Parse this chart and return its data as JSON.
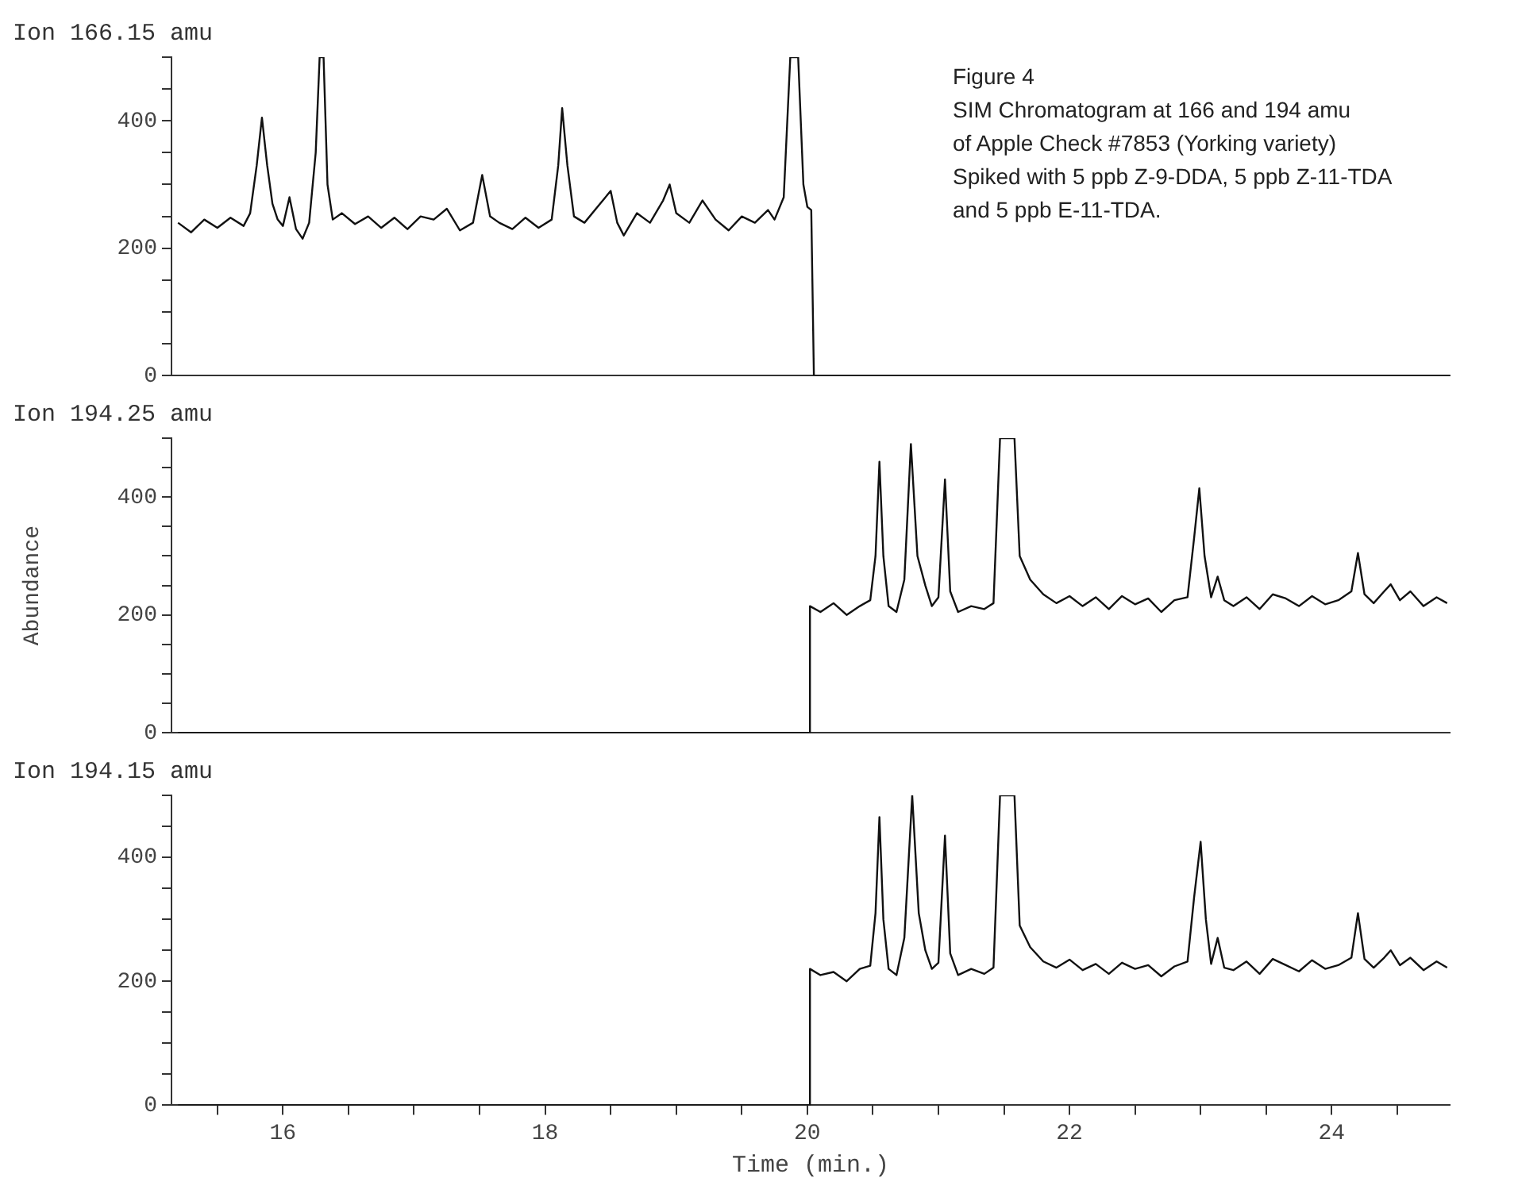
{
  "chart_data": [
    {
      "type": "line",
      "title": "Ion 166.15 amu",
      "color": "#111111",
      "marker": "none",
      "line_style": "solid",
      "tick_labels": "y",
      "xlim": [
        15.15,
        24.9
      ],
      "ylim": [
        0,
        500
      ],
      "yticks": [
        0,
        {
          "value": 50,
          "label": null
        },
        {
          "value": 100,
          "label": null
        },
        {
          "value": 150,
          "label": null
        },
        200,
        {
          "value": 250,
          "label": null
        },
        {
          "value": 300,
          "label": null
        },
        {
          "value": 350,
          "label": null
        },
        400,
        {
          "value": 450,
          "label": null
        },
        {
          "value": 500,
          "label": null
        }
      ],
      "annotations": [
        "Figure 4",
        "SIM Chromatogram at 166 and 194 amu",
        "of Apple Check #7853 (Yorking variety)",
        "Spiked with 5 ppb Z-9-DDA, 5 ppb Z-11-TDA",
        "and 5 ppb E-11-TDA."
      ],
      "x": [
        15.2,
        15.3,
        15.4,
        15.5,
        15.6,
        15.7,
        15.75,
        15.8,
        15.84,
        15.88,
        15.92,
        15.96,
        16.0,
        16.05,
        16.1,
        16.15,
        16.2,
        16.25,
        16.28,
        16.31,
        16.34,
        16.38,
        16.45,
        16.55,
        16.65,
        16.75,
        16.85,
        16.95,
        17.05,
        17.15,
        17.25,
        17.35,
        17.45,
        17.52,
        17.58,
        17.65,
        17.75,
        17.85,
        17.95,
        18.05,
        18.1,
        18.13,
        18.17,
        18.22,
        18.3,
        18.4,
        18.5,
        18.55,
        18.6,
        18.7,
        18.8,
        18.9,
        18.95,
        19.0,
        19.1,
        19.2,
        19.3,
        19.4,
        19.5,
        19.6,
        19.7,
        19.75,
        19.82,
        19.87,
        19.93,
        19.97,
        20.0,
        20.03,
        20.05,
        24.9
      ],
      "values": [
        240,
        225,
        245,
        232,
        248,
        235,
        255,
        330,
        405,
        330,
        270,
        245,
        235,
        280,
        230,
        215,
        240,
        350,
        500,
        500,
        300,
        245,
        255,
        238,
        250,
        232,
        248,
        230,
        250,
        245,
        262,
        228,
        240,
        315,
        250,
        240,
        230,
        248,
        232,
        245,
        330,
        420,
        330,
        250,
        240,
        265,
        290,
        240,
        220,
        255,
        240,
        275,
        300,
        255,
        240,
        275,
        245,
        228,
        250,
        240,
        260,
        245,
        280,
        500,
        500,
        300,
        265,
        260,
        0,
        0
      ]
    },
    {
      "type": "line",
      "title": "Ion 194.25 amu",
      "ylabel": "Abundance",
      "color": "#111111",
      "marker": "none",
      "line_style": "solid",
      "tick_labels": "y",
      "xlim": [
        15.15,
        24.9
      ],
      "ylim": [
        0,
        500
      ],
      "yticks": [
        0,
        {
          "value": 50,
          "label": null
        },
        {
          "value": 100,
          "label": null
        },
        {
          "value": 150,
          "label": null
        },
        200,
        {
          "value": 250,
          "label": null
        },
        {
          "value": 300,
          "label": null
        },
        {
          "value": 350,
          "label": null
        },
        400,
        {
          "value": 450,
          "label": null
        },
        {
          "value": 500,
          "label": null
        }
      ],
      "x": [
        15.2,
        20.02,
        20.02,
        20.1,
        20.2,
        20.3,
        20.4,
        20.48,
        20.52,
        20.55,
        20.58,
        20.62,
        20.68,
        20.74,
        20.79,
        20.84,
        20.9,
        20.95,
        21.0,
        21.05,
        21.09,
        21.15,
        21.25,
        21.35,
        21.42,
        21.47,
        21.58,
        21.62,
        21.7,
        21.8,
        21.9,
        22.0,
        22.1,
        22.2,
        22.3,
        22.4,
        22.5,
        22.6,
        22.7,
        22.8,
        22.9,
        22.95,
        22.99,
        23.03,
        23.08,
        23.13,
        23.18,
        23.25,
        23.35,
        23.45,
        23.55,
        23.65,
        23.75,
        23.85,
        23.95,
        24.05,
        24.15,
        24.2,
        24.25,
        24.32,
        24.4,
        24.45,
        24.52,
        24.6,
        24.7,
        24.8,
        24.88
      ],
      "values": [
        0,
        0,
        215,
        205,
        220,
        200,
        215,
        225,
        300,
        460,
        300,
        215,
        205,
        260,
        490,
        300,
        250,
        215,
        230,
        430,
        240,
        205,
        215,
        210,
        220,
        500,
        500,
        300,
        260,
        235,
        220,
        232,
        215,
        230,
        210,
        232,
        218,
        228,
        205,
        225,
        230,
        330,
        415,
        300,
        230,
        265,
        225,
        215,
        230,
        210,
        235,
        228,
        215,
        232,
        218,
        225,
        240,
        305,
        235,
        220,
        240,
        252,
        225,
        240,
        215,
        230,
        220
      ]
    },
    {
      "type": "line",
      "title": "Ion 194.15 amu",
      "xlabel": "Time (min.)",
      "color": "#111111",
      "marker": "none",
      "line_style": "solid",
      "xlim": [
        15.15,
        24.9
      ],
      "ylim": [
        0,
        500
      ],
      "xticks": [
        {
          "value": 15.5,
          "label": null
        },
        16,
        {
          "value": 16.5,
          "label": null
        },
        {
          "value": 17,
          "label": null
        },
        {
          "value": 17.5,
          "label": null
        },
        18,
        {
          "value": 18.5,
          "label": null
        },
        {
          "value": 19,
          "label": null
        },
        {
          "value": 19.5,
          "label": null
        },
        20,
        {
          "value": 20.5,
          "label": null
        },
        {
          "value": 21,
          "label": null
        },
        {
          "value": 21.5,
          "label": null
        },
        22,
        {
          "value": 22.5,
          "label": null
        },
        {
          "value": 23,
          "label": null
        },
        {
          "value": 23.5,
          "label": null
        },
        24,
        {
          "value": 24.5,
          "label": null
        }
      ],
      "yticks": [
        0,
        {
          "value": 50,
          "label": null
        },
        {
          "value": 100,
          "label": null
        },
        {
          "value": 150,
          "label": null
        },
        200,
        {
          "value": 250,
          "label": null
        },
        {
          "value": 300,
          "label": null
        },
        {
          "value": 350,
          "label": null
        },
        400,
        {
          "value": 450,
          "label": null
        },
        {
          "value": 500,
          "label": null
        }
      ],
      "x": [
        15.2,
        20.02,
        20.02,
        20.1,
        20.2,
        20.3,
        20.4,
        20.48,
        20.52,
        20.55,
        20.58,
        20.62,
        20.68,
        20.74,
        20.8,
        20.85,
        20.9,
        20.95,
        21.0,
        21.05,
        21.09,
        21.15,
        21.25,
        21.35,
        21.42,
        21.47,
        21.58,
        21.62,
        21.7,
        21.8,
        21.9,
        22.0,
        22.1,
        22.2,
        22.3,
        22.4,
        22.5,
        22.6,
        22.7,
        22.8,
        22.9,
        22.95,
        23.0,
        23.04,
        23.08,
        23.13,
        23.18,
        23.25,
        23.35,
        23.45,
        23.55,
        23.65,
        23.75,
        23.85,
        23.95,
        24.05,
        24.15,
        24.2,
        24.25,
        24.32,
        24.4,
        24.45,
        24.52,
        24.6,
        24.7,
        24.8,
        24.88
      ],
      "values": [
        0,
        0,
        220,
        210,
        215,
        200,
        220,
        225,
        310,
        465,
        300,
        220,
        210,
        270,
        500,
        310,
        250,
        220,
        230,
        435,
        245,
        210,
        220,
        212,
        222,
        500,
        500,
        290,
        255,
        232,
        222,
        235,
        218,
        228,
        212,
        230,
        220,
        226,
        208,
        224,
        232,
        335,
        425,
        300,
        228,
        270,
        222,
        218,
        232,
        212,
        236,
        226,
        216,
        234,
        220,
        226,
        238,
        310,
        236,
        222,
        238,
        250,
        226,
        238,
        218,
        232,
        222
      ]
    }
  ]
}
